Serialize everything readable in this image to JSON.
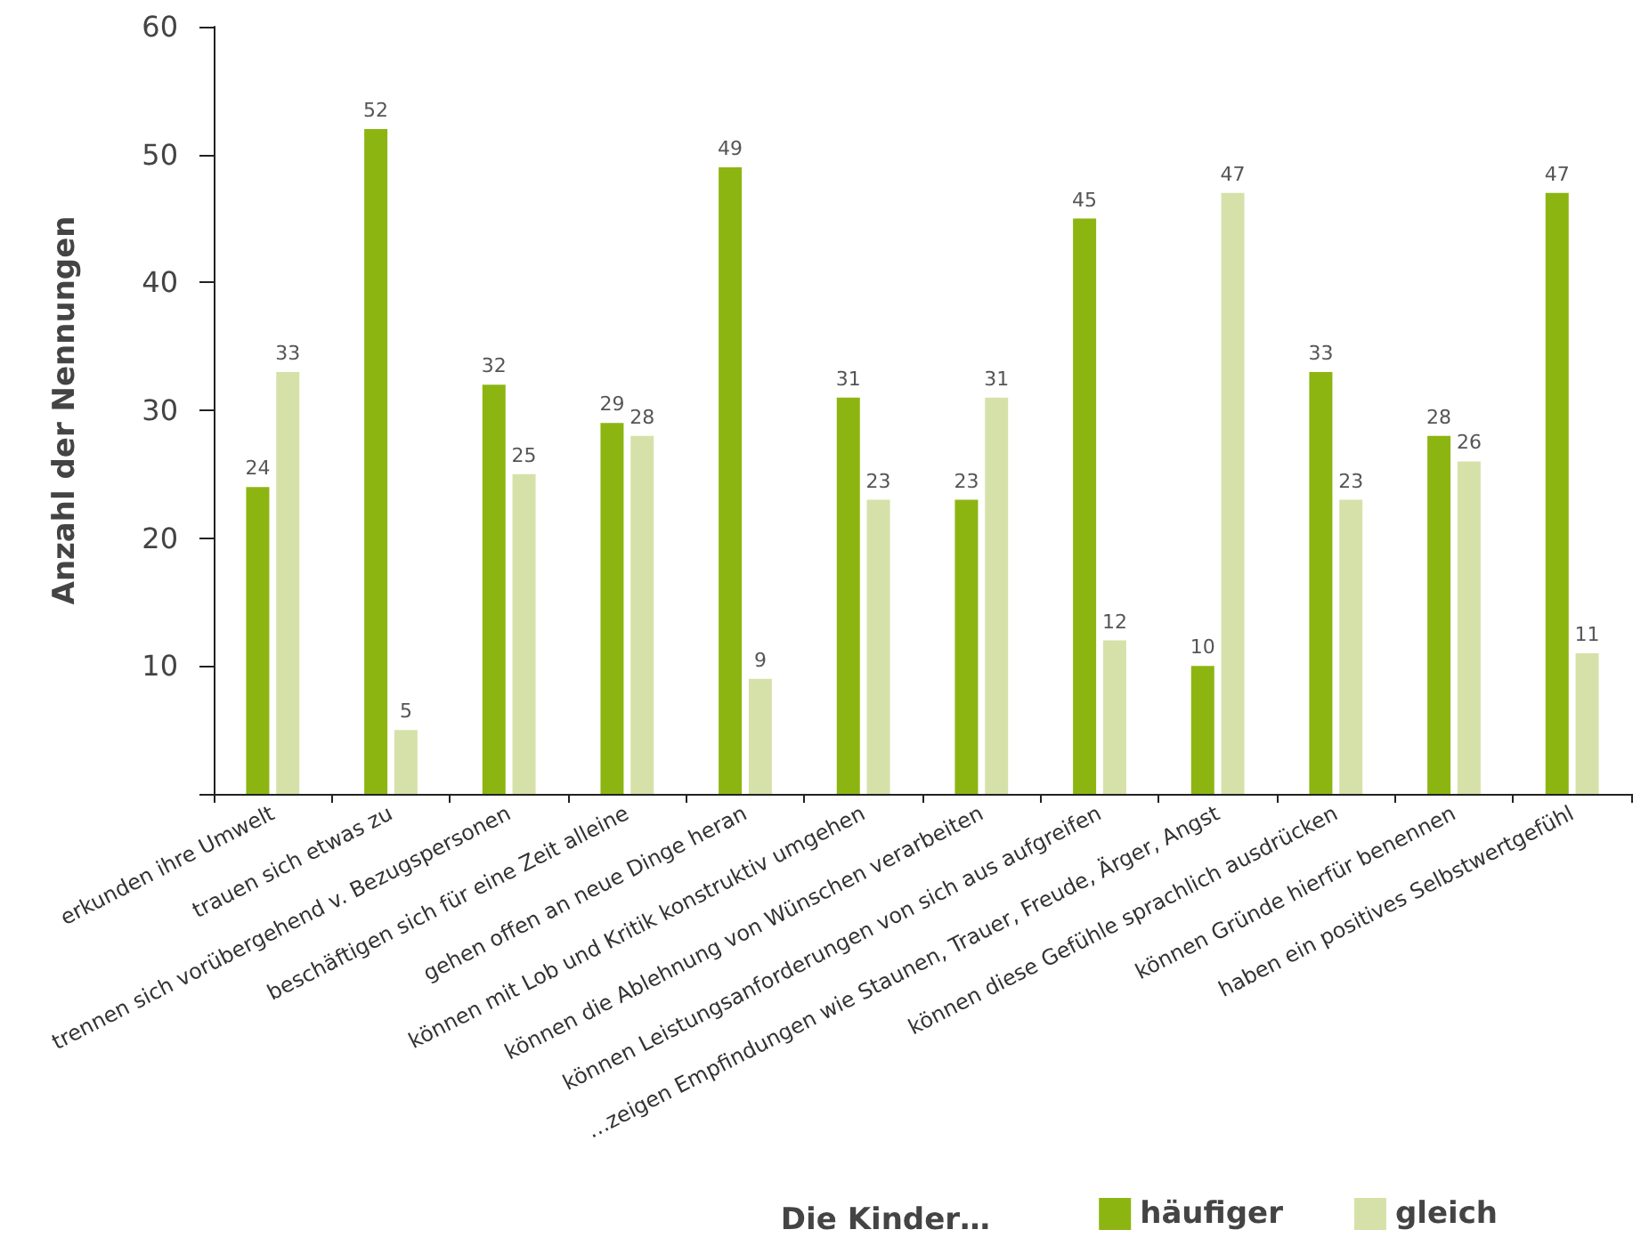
{
  "chart_data": {
    "type": "bar",
    "ylabel": "Anzahl der Nennungen",
    "legend_title": "Die Kinder…",
    "legend": "bottom right",
    "data_labels": true,
    "grid": false,
    "categories": [
      "erkunden ihre Umwelt",
      "trauen sich etwas zu",
      "trennen sich vorübergehend v. Bezugspersonen",
      "beschäftigen sich für eine Zeit alleine",
      "gehen offen an neue Dinge heran",
      "können mit Lob und Kritik konstruktiv umgehen",
      "können die Ablehnung von Wünschen verarbeiten",
      "können Leistungsanforderungen von sich aus aufgreifen",
      "…zeigen Empfindungen wie Staunen, Trauer, Freude, Ärger, Angst",
      "können diese Gefühle sprachlich ausdrücken",
      "können Gründe hierfür benennen",
      "haben ein positives Selbstwertgefühl"
    ],
    "series": [
      {
        "name": "häufiger",
        "color": "#8cb512",
        "values": [
          24,
          52,
          32,
          29,
          49,
          31,
          23,
          45,
          10,
          33,
          28,
          47
        ]
      },
      {
        "name": "gleich",
        "color": "#d6e1a9",
        "values": [
          33,
          5,
          25,
          28,
          9,
          23,
          31,
          12,
          47,
          23,
          26,
          11
        ]
      }
    ],
    "ylim": [
      0,
      60
    ],
    "yticks": [
      {
        "value": 0,
        "label": null
      },
      10,
      20,
      30,
      40,
      50,
      60
    ]
  }
}
